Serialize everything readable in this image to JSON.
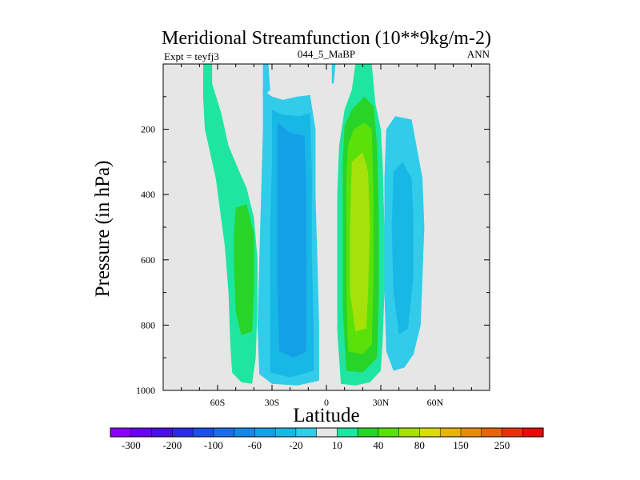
{
  "chart_data": {
    "type": "contour",
    "title": "Meridional Streamfunction (10**9kg/m-2)",
    "left_label": "Expt = teyfj3",
    "center_label": "044_5_MaBP",
    "right_label": "ANN",
    "xlabel": "Latitude",
    "ylabel": "Pressure (in hPa)",
    "xlim": [
      -90,
      90
    ],
    "ylim": [
      0,
      1000
    ],
    "y_inverted": true,
    "x_ticks": [
      {
        "value": -60,
        "label": "60S"
      },
      {
        "value": -30,
        "label": "30S"
      },
      {
        "value": 0,
        "label": "0"
      },
      {
        "value": 30,
        "label": "30N"
      },
      {
        "value": 60,
        "label": "60N"
      }
    ],
    "y_ticks": [
      {
        "value": 200,
        "label": "200"
      },
      {
        "value": 400,
        "label": "400"
      },
      {
        "value": 600,
        "label": "600"
      },
      {
        "value": 800,
        "label": "800"
      },
      {
        "value": 1000,
        "label": "1000"
      }
    ],
    "background_color": "#e6e6e6",
    "colorbar": {
      "levels": [
        -300,
        -250,
        -200,
        -150,
        -100,
        -80,
        -60,
        -40,
        -20,
        -10,
        10,
        20,
        40,
        60,
        80,
        100,
        150,
        200,
        250,
        300
      ],
      "labels": [
        "-300",
        "-200",
        "-100",
        "-60",
        "-20",
        "10",
        "40",
        "80",
        "150",
        "250"
      ],
      "label_positions": [
        1,
        3,
        5,
        7,
        9,
        11,
        13,
        15,
        17,
        19
      ],
      "colors": [
        "#8c00ff",
        "#6a00f0",
        "#4a10e0",
        "#2b2be6",
        "#1a50e6",
        "#1a6ee8",
        "#1488e6",
        "#14a0e6",
        "#18b8e6",
        "#30ccea",
        "#e6e6e6",
        "#1ee6a0",
        "#28d428",
        "#5ae10a",
        "#a6e10a",
        "#dcdc0a",
        "#e6b40a",
        "#e68c0a",
        "#e6640a",
        "#e6320a",
        "#e60a0a"
      ]
    },
    "cells": [
      {
        "name": "sh-ferrel-cell",
        "sign": "positive",
        "polygons": [
          {
            "level": 10,
            "color": "#1ee6a0",
            "points": [
              [
                -68,
                0
              ],
              [
                -63,
                0
              ],
              [
                -63,
                60
              ],
              [
                -58,
                150
              ],
              [
                -54,
                250
              ],
              [
                -48,
                330
              ],
              [
                -44,
                380
              ],
              [
                -40,
                470
              ],
              [
                -38,
                600
              ],
              [
                -38,
                740
              ],
              [
                -39,
                900
              ],
              [
                -41,
                980
              ],
              [
                -47,
                975
              ],
              [
                -52,
                945
              ],
              [
                -53,
                860
              ],
              [
                -54,
                700
              ],
              [
                -56,
                560
              ],
              [
                -61,
                350
              ],
              [
                -67,
                200
              ],
              [
                -68,
                100
              ]
            ]
          },
          {
            "level": 20,
            "color": "#28d428",
            "points": [
              [
                -50,
                440
              ],
              [
                -44,
                430
              ],
              [
                -40,
                520
              ],
              [
                -40,
                700
              ],
              [
                -41,
                820
              ],
              [
                -47,
                830
              ],
              [
                -50,
                760
              ],
              [
                -51,
                620
              ],
              [
                -51,
                520
              ]
            ]
          }
        ]
      },
      {
        "name": "sh-hadley-cell",
        "sign": "negative",
        "polygons": [
          {
            "level": -10,
            "color": "#30ccea",
            "points": [
              [
                -35,
                80
              ],
              [
                -30,
                100
              ],
              [
                -24,
                110
              ],
              [
                -16,
                100
              ],
              [
                -9,
                95
              ],
              [
                -6,
                200
              ],
              [
                -6,
                400
              ],
              [
                -5,
                600
              ],
              [
                -4,
                800
              ],
              [
                -4,
                970
              ],
              [
                -16,
                985
              ],
              [
                -30,
                980
              ],
              [
                -37,
                950
              ],
              [
                -38,
                800
              ],
              [
                -37,
                600
              ],
              [
                -36,
                400
              ],
              [
                -35,
                200
              ]
            ]
          },
          {
            "level": -20,
            "color": "#18b8e6",
            "points": [
              [
                -30,
                140
              ],
              [
                -24,
                155
              ],
              [
                -15,
                160
              ],
              [
                -9,
                150
              ],
              [
                -8,
                350
              ],
              [
                -8,
                600
              ],
              [
                -7,
                800
              ],
              [
                -7,
                940
              ],
              [
                -20,
                960
              ],
              [
                -31,
                945
              ],
              [
                -31,
                700
              ],
              [
                -31,
                500
              ],
              [
                -30,
                300
              ]
            ]
          },
          {
            "level": -40,
            "color": "#14a0e6",
            "points": [
              [
                -27,
                180
              ],
              [
                -20,
                210
              ],
              [
                -12,
                220
              ],
              [
                -11,
                400
              ],
              [
                -11,
                650
              ],
              [
                -11,
                880
              ],
              [
                -18,
                900
              ],
              [
                -26,
                880
              ],
              [
                -27,
                700
              ],
              [
                -27,
                500
              ],
              [
                -27,
                300
              ]
            ]
          }
        ]
      },
      {
        "name": "nh-hadley-cell",
        "sign": "positive",
        "polygons": [
          {
            "level": 10,
            "color": "#1ee6a0",
            "points": [
              [
                10,
                140
              ],
              [
                14,
                80
              ],
              [
                16,
                0
              ],
              [
                25,
                0
              ],
              [
                27,
                120
              ],
              [
                30,
                200
              ],
              [
                31,
                300
              ],
              [
                32,
                500
              ],
              [
                32,
                700
              ],
              [
                31,
                850
              ],
              [
                30,
                940
              ],
              [
                24,
                975
              ],
              [
                16,
                985
              ],
              [
                8,
                980
              ],
              [
                6,
                820
              ],
              [
                6,
                600
              ],
              [
                6,
                400
              ],
              [
                7,
                250
              ]
            ]
          },
          {
            "level": 20,
            "color": "#28d428",
            "points": [
              [
                10,
                190
              ],
              [
                14,
                140
              ],
              [
                21,
                100
              ],
              [
                26,
                130
              ],
              [
                28,
                250
              ],
              [
                29,
                500
              ],
              [
                29,
                700
              ],
              [
                28,
                900
              ],
              [
                20,
                945
              ],
              [
                11,
                940
              ],
              [
                9,
                750
              ],
              [
                9,
                500
              ],
              [
                9,
                300
              ]
            ]
          },
          {
            "level": 40,
            "color": "#5ae10a",
            "points": [
              [
                12,
                250
              ],
              [
                15,
                200
              ],
              [
                21,
                180
              ],
              [
                25,
                200
              ],
              [
                26,
                400
              ],
              [
                26,
                650
              ],
              [
                25,
                860
              ],
              [
                20,
                890
              ],
              [
                12,
                880
              ],
              [
                11,
                700
              ],
              [
                11,
                500
              ],
              [
                11,
                350
              ]
            ]
          },
          {
            "level": 60,
            "color": "#a6e10a",
            "points": [
              [
                14,
                300
              ],
              [
                20,
                270
              ],
              [
                23,
                330
              ],
              [
                24,
                500
              ],
              [
                23,
                700
              ],
              [
                22,
                810
              ],
              [
                16,
                820
              ],
              [
                13,
                700
              ],
              [
                13,
                500
              ]
            ]
          }
        ]
      },
      {
        "name": "nh-ferrel-cell",
        "sign": "negative",
        "polygons": [
          {
            "level": -10,
            "color": "#30ccea",
            "points": [
              [
                33,
                200
              ],
              [
                38,
                160
              ],
              [
                47,
                170
              ],
              [
                50,
                260
              ],
              [
                53,
                350
              ],
              [
                54,
                500
              ],
              [
                53,
                650
              ],
              [
                52,
                800
              ],
              [
                48,
                890
              ],
              [
                43,
                930
              ],
              [
                37,
                940
              ],
              [
                33,
                880
              ],
              [
                32,
                700
              ],
              [
                32,
                500
              ],
              [
                32,
                350
              ]
            ]
          },
          {
            "level": -20,
            "color": "#18b8e6",
            "points": [
              [
                37,
                330
              ],
              [
                42,
                300
              ],
              [
                47,
                350
              ],
              [
                48,
                480
              ],
              [
                48,
                650
              ],
              [
                45,
                810
              ],
              [
                40,
                830
              ],
              [
                37,
                700
              ],
              [
                36,
                500
              ]
            ]
          }
        ]
      },
      {
        "name": "upper-equatorial-tongue",
        "sign": "negative",
        "polygons": [
          {
            "level": -10,
            "color": "#30ccea",
            "points": [
              [
                -35,
                0
              ],
              [
                -32,
                0
              ],
              [
                -31,
                80
              ],
              [
                -35,
                100
              ]
            ]
          },
          {
            "level": -10,
            "color": "#30ccea",
            "points": [
              [
                3,
                0
              ],
              [
                5,
                0
              ],
              [
                4,
                60
              ],
              [
                3,
                60
              ]
            ]
          }
        ]
      }
    ]
  }
}
